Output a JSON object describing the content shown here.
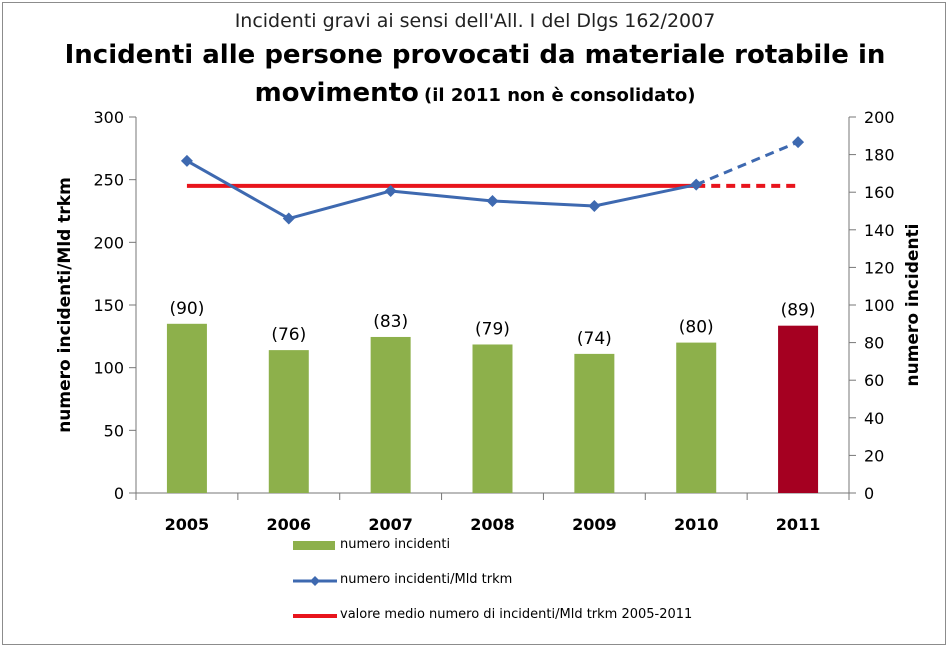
{
  "chart_data": {
    "type": "bar+line",
    "subtitle": "Incidenti gravi ai sensi dell'All. I del Dlgs 162/2007",
    "title_line1": "Incidenti alle persone provocati da materiale rotabile in",
    "title_line2_main": "movimento",
    "title_line2_note": "(il  2011 non è consolidato)",
    "categories": [
      "2005",
      "2006",
      "2007",
      "2008",
      "2009",
      "2010",
      "2011"
    ],
    "series": [
      {
        "name": "numero incidenti",
        "type": "bar",
        "axis": "right",
        "values": [
          90,
          76,
          83,
          79,
          74,
          80,
          89
        ],
        "data_labels": [
          "(90)",
          "(76)",
          "(83)",
          "(79)",
          "(74)",
          "(80)",
          "(89)"
        ],
        "color": "#8db04b",
        "highlight_last_color": "#a50021"
      },
      {
        "name": "numero incidenti/Mld trkm",
        "type": "line",
        "axis": "left",
        "values": [
          265,
          219,
          241,
          233,
          229,
          246,
          280
        ],
        "dashed_last_segment": true,
        "color": "#3e69b0"
      },
      {
        "name": "valore medio numero di incidenti/Mld trkm 2005-2011",
        "type": "line",
        "axis": "left",
        "values": [
          245,
          245,
          245,
          245,
          245,
          245,
          245
        ],
        "dashed_last_segment": true,
        "color": "#e8141c"
      }
    ],
    "y_left": {
      "label": "numero incidenti/Mld trkm",
      "min": 0,
      "max": 300,
      "ticks": [
        "0",
        "50",
        "100",
        "150",
        "200",
        "250",
        "300"
      ]
    },
    "y_right": {
      "label": "numero incidenti",
      "min": 0,
      "max": 200,
      "ticks": [
        "0",
        "20",
        "40",
        "60",
        "80",
        "100",
        "120",
        "140",
        "160",
        "180",
        "200"
      ]
    },
    "legend": [
      "numero incidenti",
      "numero incidenti/Mld trkm",
      "valore medio numero di incidenti/Mld trkm 2005-2011"
    ],
    "grid": false
  }
}
